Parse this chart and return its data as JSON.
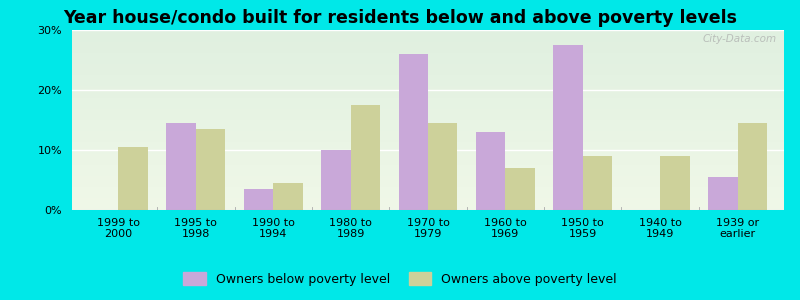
{
  "title": "Year house/condo built for residents below and above poverty levels",
  "categories": [
    "1999 to\n2000",
    "1995 to\n1998",
    "1990 to\n1994",
    "1980 to\n1989",
    "1970 to\n1979",
    "1960 to\n1969",
    "1950 to\n1959",
    "1940 to\n1949",
    "1939 or\nearlier"
  ],
  "below_poverty": [
    0.0,
    14.5,
    3.5,
    10.0,
    26.0,
    13.0,
    27.5,
    0.0,
    5.5
  ],
  "above_poverty": [
    10.5,
    13.5,
    4.5,
    17.5,
    14.5,
    7.0,
    9.0,
    9.0,
    14.5
  ],
  "below_color": "#c9a8d9",
  "above_color": "#cdd19a",
  "ylim": [
    0,
    30
  ],
  "yticks": [
    0,
    10,
    20,
    30
  ],
  "ytick_labels": [
    "0%",
    "10%",
    "20%",
    "30%"
  ],
  "below_label": "Owners below poverty level",
  "above_label": "Owners above poverty level",
  "bg_top": "#e0f0e0",
  "bg_bottom": "#f0f8e8",
  "outer_bg": "#00e8e8",
  "bar_width": 0.38,
  "title_fontsize": 12.5,
  "tick_fontsize": 8,
  "legend_fontsize": 9,
  "watermark": "City-Data.com"
}
